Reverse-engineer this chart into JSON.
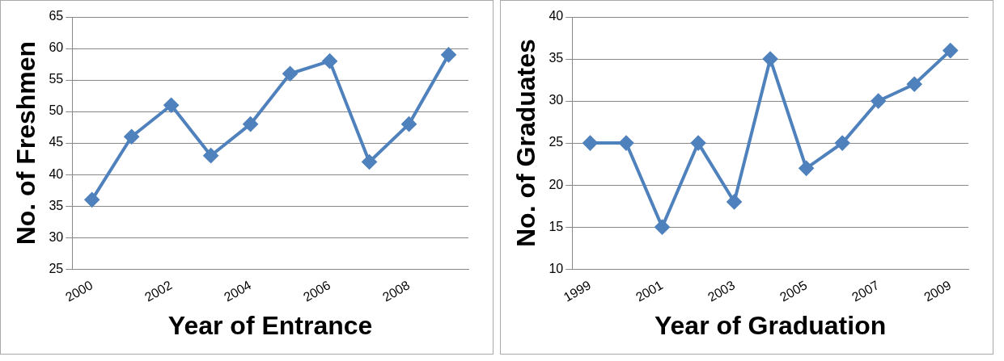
{
  "chart_data": [
    {
      "type": "line",
      "xlabel": "Year of Entrance",
      "ylabel": "No. of Freshmen",
      "categories": [
        "2000",
        null,
        "2002",
        null,
        "2004",
        null,
        "2006",
        null,
        "2008",
        null
      ],
      "values": [
        36,
        46,
        51,
        43,
        48,
        56,
        58,
        42,
        48,
        59
      ],
      "color": "#4f81bd",
      "ylim": [
        25,
        65
      ],
      "yticks": [
        25,
        30,
        35,
        40,
        45,
        50,
        55,
        60,
        65
      ],
      "grid": "y",
      "marker": "diamond"
    },
    {
      "type": "line",
      "xlabel": "Year of Graduation",
      "ylabel": "No. of Graduates",
      "categories": [
        "1999",
        null,
        "2001",
        null,
        "2003",
        null,
        "2005",
        null,
        "2007",
        null,
        "2009"
      ],
      "values": [
        25,
        25,
        15,
        25,
        18,
        35,
        22,
        25,
        30,
        32,
        36
      ],
      "color": "#4f81bd",
      "ylim": [
        10,
        40
      ],
      "yticks": [
        10,
        15,
        20,
        25,
        30,
        35,
        40
      ],
      "grid": "y",
      "marker": "diamond"
    }
  ]
}
